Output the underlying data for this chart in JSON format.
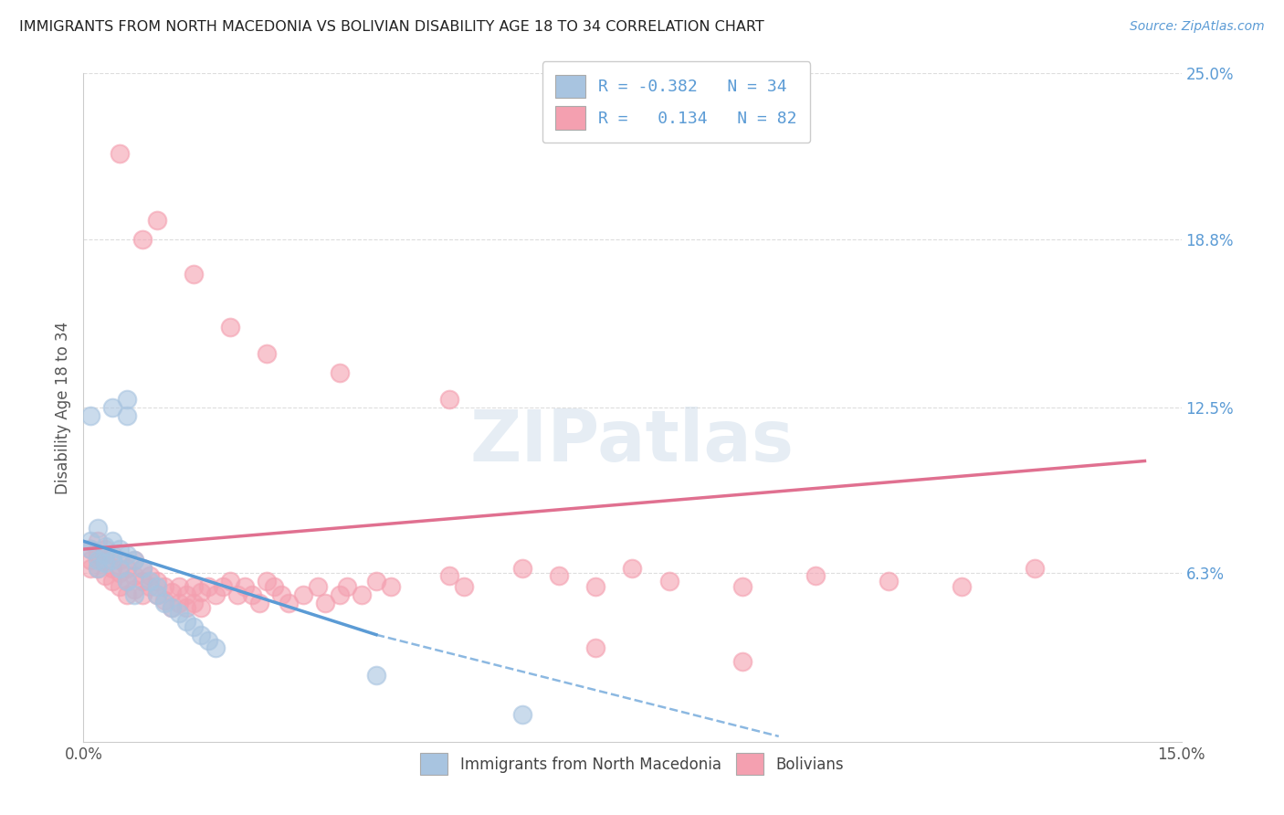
{
  "title": "IMMIGRANTS FROM NORTH MACEDONIA VS BOLIVIAN DISABILITY AGE 18 TO 34 CORRELATION CHART",
  "source": "Source: ZipAtlas.com",
  "ylabel": "Disability Age 18 to 34",
  "xlim": [
    0.0,
    0.15
  ],
  "ylim": [
    0.0,
    0.25
  ],
  "yticks": [
    0.063,
    0.125,
    0.188,
    0.25
  ],
  "yticklabels": [
    "6.3%",
    "12.5%",
    "18.8%",
    "25.0%"
  ],
  "blue_R": -0.382,
  "blue_N": 34,
  "pink_R": 0.134,
  "pink_N": 82,
  "blue_color": "#a8c4e0",
  "pink_color": "#f4a0b0",
  "blue_line_color": "#5b9bd5",
  "pink_line_color": "#e07090",
  "blue_scatter": [
    [
      0.001,
      0.075
    ],
    [
      0.001,
      0.072
    ],
    [
      0.002,
      0.08
    ],
    [
      0.002,
      0.068
    ],
    [
      0.002,
      0.065
    ],
    [
      0.003,
      0.073
    ],
    [
      0.003,
      0.07
    ],
    [
      0.003,
      0.067
    ],
    [
      0.004,
      0.075
    ],
    [
      0.004,
      0.068
    ],
    [
      0.005,
      0.072
    ],
    [
      0.005,
      0.065
    ],
    [
      0.006,
      0.07
    ],
    [
      0.006,
      0.06
    ],
    [
      0.007,
      0.068
    ],
    [
      0.007,
      0.055
    ],
    [
      0.008,
      0.065
    ],
    [
      0.009,
      0.06
    ],
    [
      0.01,
      0.058
    ],
    [
      0.01,
      0.055
    ],
    [
      0.011,
      0.052
    ],
    [
      0.012,
      0.05
    ],
    [
      0.013,
      0.048
    ],
    [
      0.014,
      0.045
    ],
    [
      0.015,
      0.043
    ],
    [
      0.016,
      0.04
    ],
    [
      0.017,
      0.038
    ],
    [
      0.018,
      0.035
    ],
    [
      0.001,
      0.122
    ],
    [
      0.004,
      0.125
    ],
    [
      0.006,
      0.128
    ],
    [
      0.006,
      0.122
    ],
    [
      0.04,
      0.025
    ],
    [
      0.06,
      0.01
    ]
  ],
  "pink_scatter": [
    [
      0.001,
      0.072
    ],
    [
      0.001,
      0.068
    ],
    [
      0.001,
      0.065
    ],
    [
      0.002,
      0.075
    ],
    [
      0.002,
      0.07
    ],
    [
      0.002,
      0.065
    ],
    [
      0.003,
      0.072
    ],
    [
      0.003,
      0.068
    ],
    [
      0.003,
      0.062
    ],
    [
      0.004,
      0.07
    ],
    [
      0.004,
      0.065
    ],
    [
      0.004,
      0.06
    ],
    [
      0.005,
      0.068
    ],
    [
      0.005,
      0.063
    ],
    [
      0.005,
      0.058
    ],
    [
      0.006,
      0.065
    ],
    [
      0.006,
      0.06
    ],
    [
      0.006,
      0.055
    ],
    [
      0.007,
      0.068
    ],
    [
      0.007,
      0.062
    ],
    [
      0.007,
      0.057
    ],
    [
      0.008,
      0.065
    ],
    [
      0.008,
      0.06
    ],
    [
      0.008,
      0.055
    ],
    [
      0.009,
      0.062
    ],
    [
      0.009,
      0.058
    ],
    [
      0.01,
      0.06
    ],
    [
      0.01,
      0.055
    ],
    [
      0.011,
      0.058
    ],
    [
      0.011,
      0.053
    ],
    [
      0.012,
      0.056
    ],
    [
      0.012,
      0.05
    ],
    [
      0.013,
      0.058
    ],
    [
      0.013,
      0.052
    ],
    [
      0.014,
      0.055
    ],
    [
      0.014,
      0.05
    ],
    [
      0.015,
      0.058
    ],
    [
      0.015,
      0.052
    ],
    [
      0.016,
      0.056
    ],
    [
      0.016,
      0.05
    ],
    [
      0.017,
      0.058
    ],
    [
      0.018,
      0.055
    ],
    [
      0.019,
      0.058
    ],
    [
      0.02,
      0.06
    ],
    [
      0.021,
      0.055
    ],
    [
      0.022,
      0.058
    ],
    [
      0.023,
      0.055
    ],
    [
      0.024,
      0.052
    ],
    [
      0.025,
      0.06
    ],
    [
      0.026,
      0.058
    ],
    [
      0.027,
      0.055
    ],
    [
      0.028,
      0.052
    ],
    [
      0.03,
      0.055
    ],
    [
      0.032,
      0.058
    ],
    [
      0.033,
      0.052
    ],
    [
      0.035,
      0.055
    ],
    [
      0.036,
      0.058
    ],
    [
      0.038,
      0.055
    ],
    [
      0.04,
      0.06
    ],
    [
      0.042,
      0.058
    ],
    [
      0.05,
      0.062
    ],
    [
      0.052,
      0.058
    ],
    [
      0.06,
      0.065
    ],
    [
      0.065,
      0.062
    ],
    [
      0.07,
      0.058
    ],
    [
      0.075,
      0.065
    ],
    [
      0.08,
      0.06
    ],
    [
      0.09,
      0.058
    ],
    [
      0.1,
      0.062
    ],
    [
      0.11,
      0.06
    ],
    [
      0.12,
      0.058
    ],
    [
      0.13,
      0.065
    ],
    [
      0.005,
      0.22
    ],
    [
      0.008,
      0.188
    ],
    [
      0.01,
      0.195
    ],
    [
      0.015,
      0.175
    ],
    [
      0.02,
      0.155
    ],
    [
      0.025,
      0.145
    ],
    [
      0.035,
      0.138
    ],
    [
      0.05,
      0.128
    ],
    [
      0.07,
      0.035
    ],
    [
      0.09,
      0.03
    ]
  ],
  "watermark": "ZIPatlas",
  "background_color": "#ffffff",
  "grid_color": "#dddddd"
}
